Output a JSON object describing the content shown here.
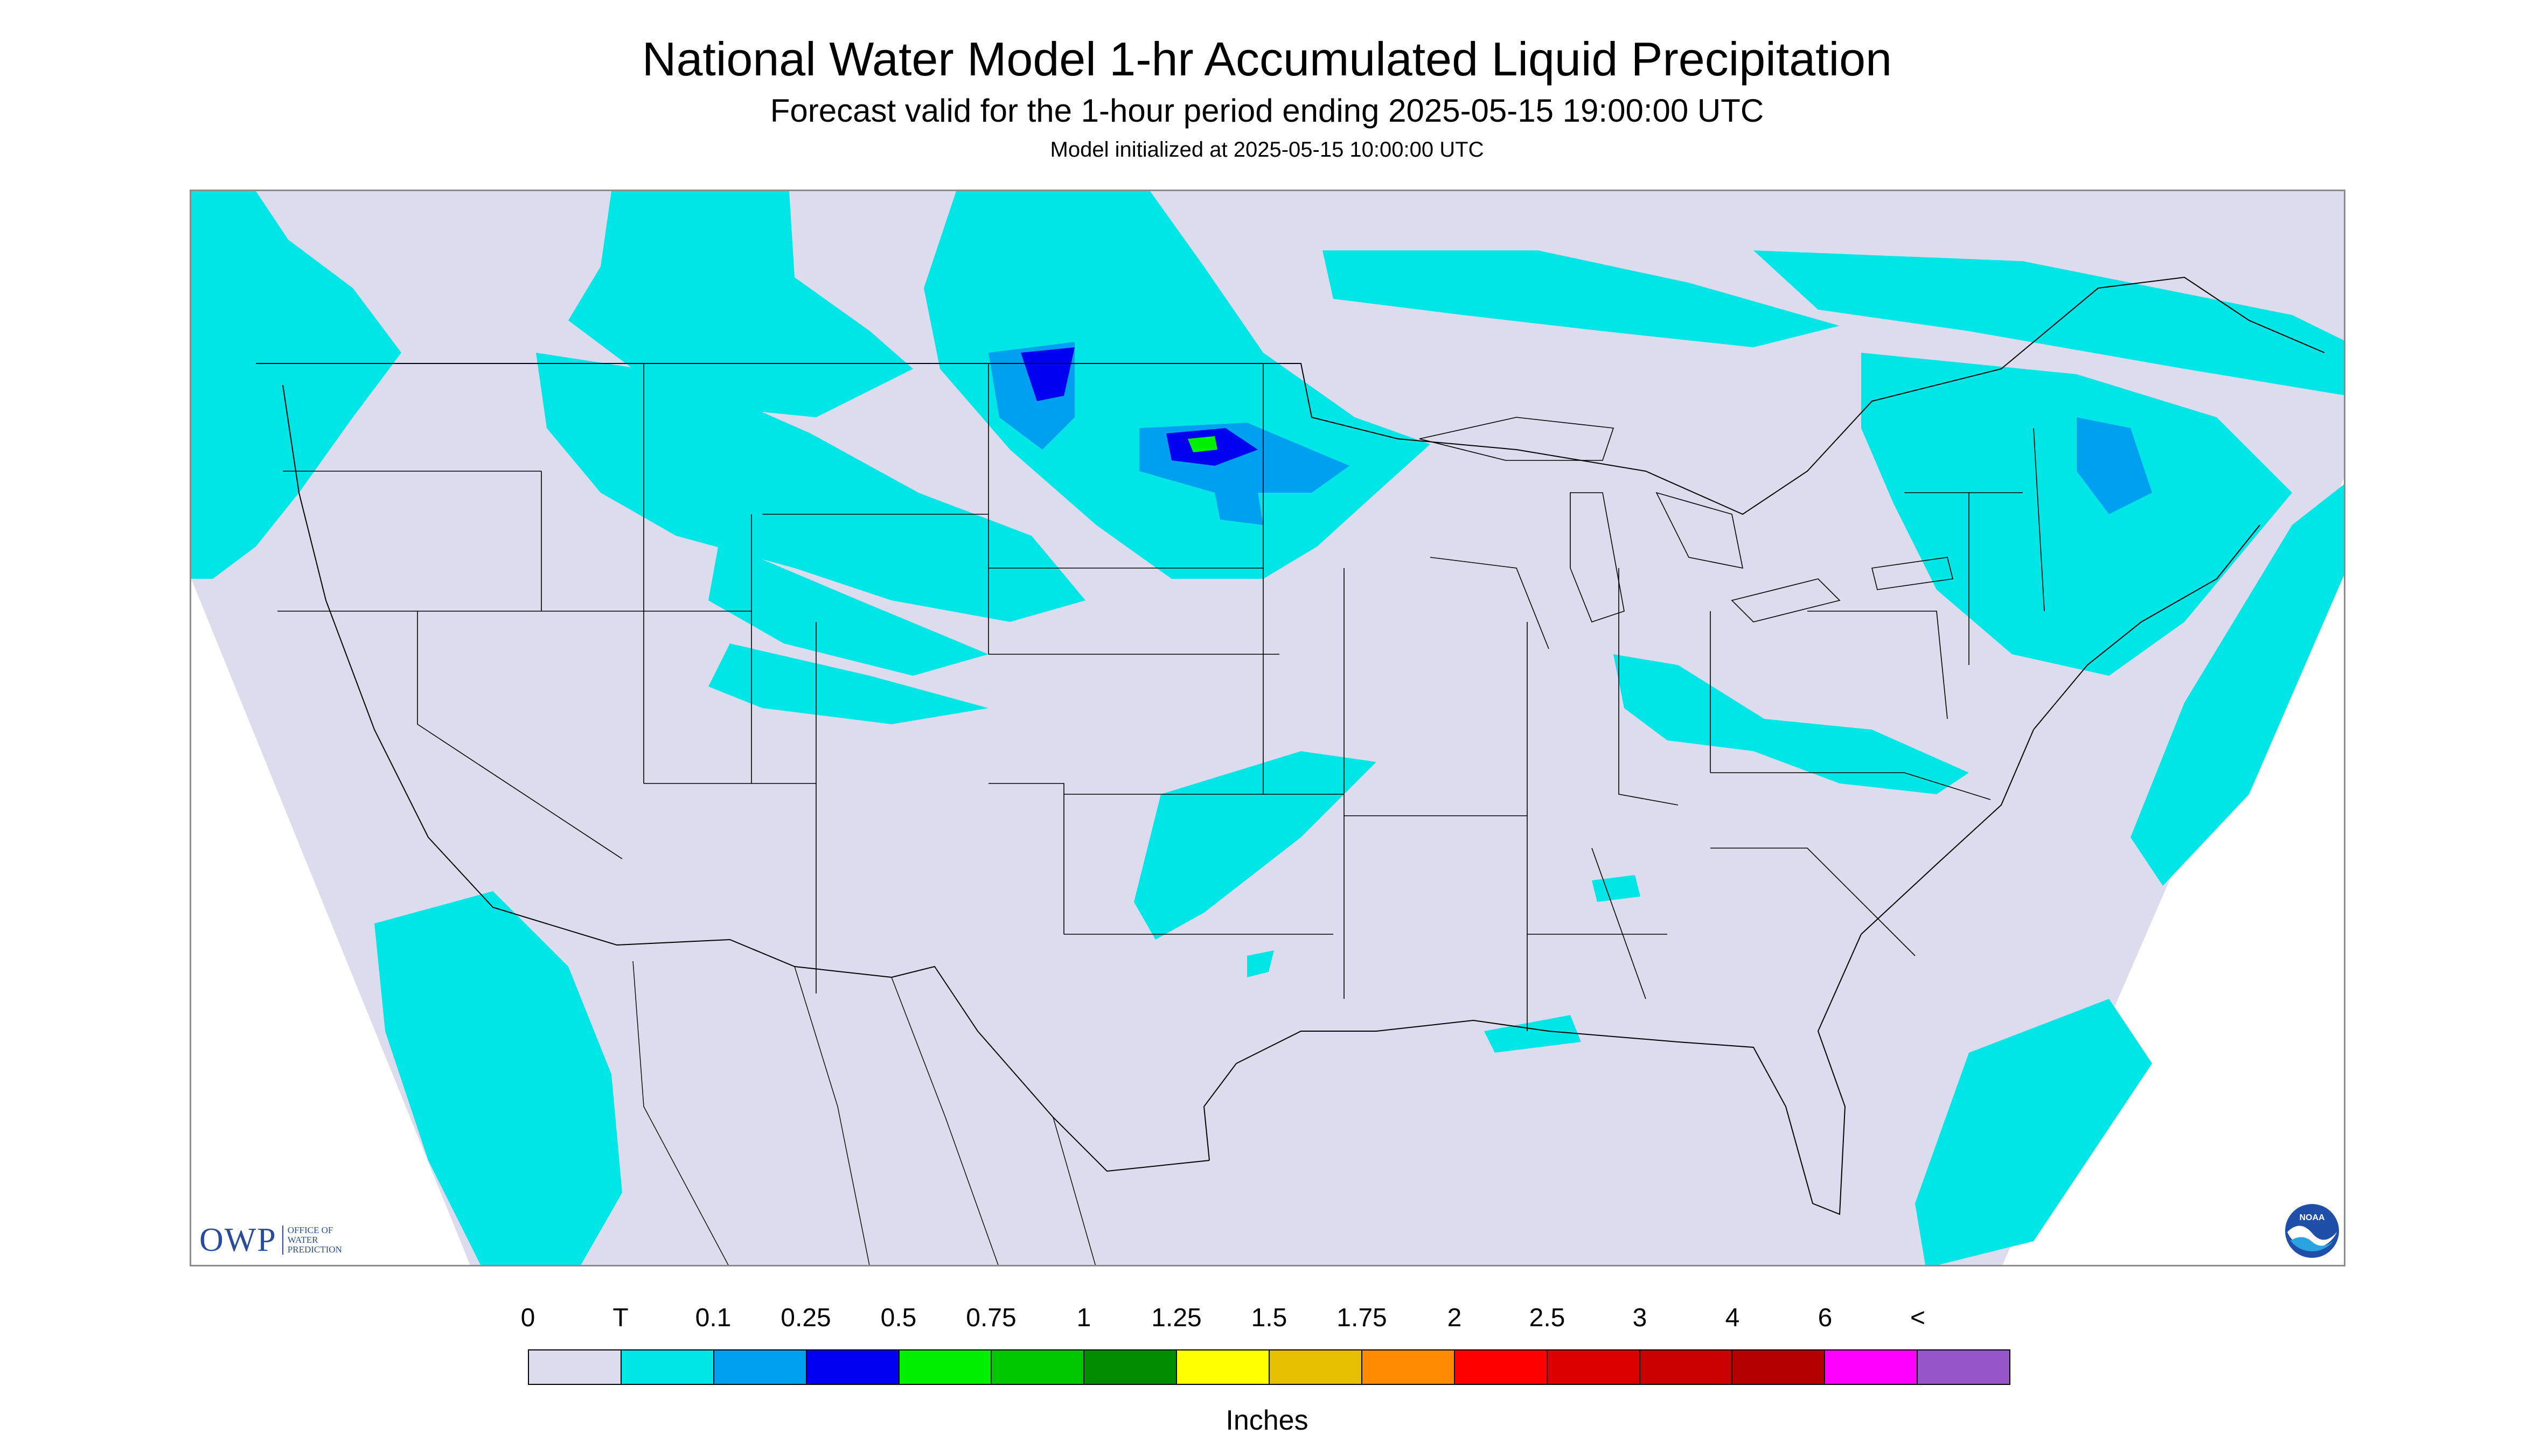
{
  "header": {
    "title": "National Water Model 1-hr Accumulated Liquid Precipitation",
    "subtitle": "Forecast valid for the 1-hour period ending 2025-05-15 19:00:00 UTC",
    "init": "Model initialized at 2025-05-15 10:00:00 UTC"
  },
  "logos": {
    "owp_main": "OWP",
    "owp_line1": "OFFICE OF",
    "owp_line2": "WATER",
    "owp_line3": "PREDICTION",
    "noaa_text": "NOAA"
  },
  "legend": {
    "units": "Inches",
    "labels": [
      "0",
      "T",
      "0.1",
      "0.25",
      "0.5",
      "0.75",
      "1",
      "1.25",
      "1.5",
      "1.75",
      "2",
      "2.5",
      "3",
      "4",
      "6",
      "<"
    ],
    "colors": [
      "#dcdcee",
      "#00e6e6",
      "#00a0f0",
      "#0000f0",
      "#00f000",
      "#00c800",
      "#008c00",
      "#ffff00",
      "#e6c000",
      "#ff8c00",
      "#ff0000",
      "#dc0000",
      "#c80000",
      "#b40000",
      "#ff00ff",
      "#9655c8"
    ]
  },
  "map": {
    "background_color": "#dcdcee",
    "outside_color": "#ffffff",
    "boundary_color": "#000000"
  }
}
